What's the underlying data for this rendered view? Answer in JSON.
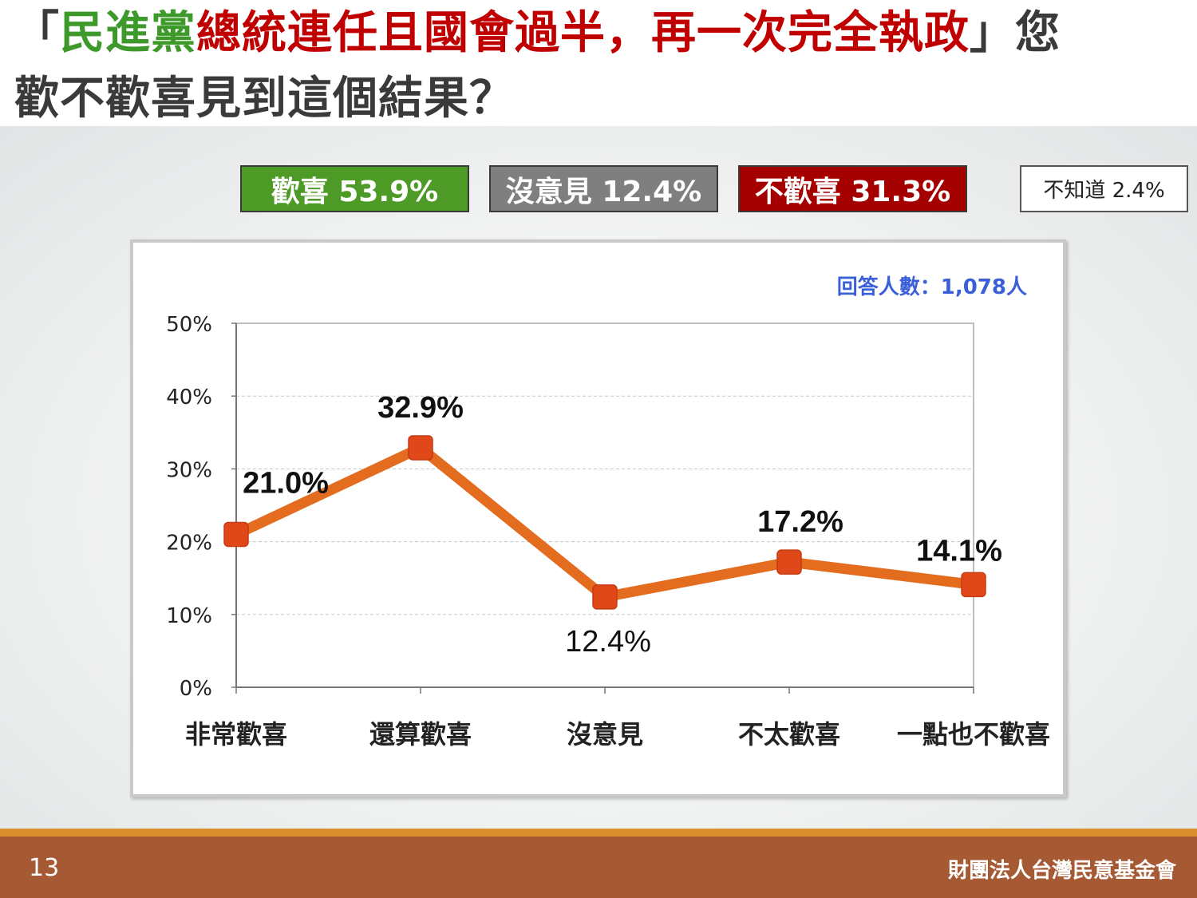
{
  "title": {
    "open_quote": "「",
    "party": "民進黨",
    "headline": "總統連任且國會過半，再一次完全執政",
    "close_quote": "」您",
    "line2": "歡不歡喜見到這個結果？"
  },
  "summary": {
    "like": "歡喜 53.9%",
    "neutral": "沒意見 12.4%",
    "dislike": "不歡喜 31.3%",
    "dontknow": "不知道 2.4%"
  },
  "colors": {
    "like": "#4e9a26",
    "neutral": "#7f7f7f",
    "dislike": "#a50000",
    "line": "#e36c1e",
    "marker": "#e0481a",
    "note": "#3b5fd9",
    "footer": "#a65a33"
  },
  "chart_data": {
    "type": "line",
    "categories": [
      "非常歡喜",
      "還算歡喜",
      "沒意見",
      "不太歡喜",
      "一點也不歡喜"
    ],
    "values": [
      21.0,
      32.9,
      12.4,
      17.2,
      14.1
    ],
    "data_labels": [
      "21.0%",
      "32.9%",
      "12.4%",
      "17.2%",
      "14.1%"
    ],
    "yticks": [
      "0%",
      "10%",
      "20%",
      "30%",
      "40%",
      "50%"
    ],
    "ylim": [
      0,
      50
    ],
    "grid": true,
    "note": "回答人數：1,078人"
  },
  "footer": {
    "page_number": "13",
    "organization": "財團法人台灣民意基金會"
  }
}
